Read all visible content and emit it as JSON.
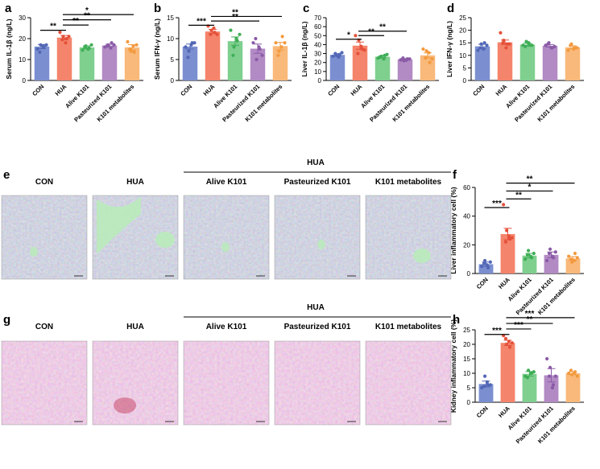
{
  "categories": [
    "CON",
    "HUA",
    "Alive K101",
    "Pasteurized K101",
    "K101 metabolites"
  ],
  "colors": {
    "CON": "#7b8fd0",
    "HUA": "#f4846b",
    "Alive K101": "#7fcf8f",
    "Pasteurized K101": "#b28ac4",
    "K101 metabolites": "#f8b97a",
    "CON_dot": "#5267b6",
    "HUA_dot": "#e5513a",
    "Alive K101_dot": "#3fae57",
    "Pasteurized K101_dot": "#8a5aa6",
    "K101 metabolites_dot": "#f39a3f",
    "liver_tissue": "#8d8fa8",
    "kidney_tissue": "#d69ac4"
  },
  "chart_data": [
    {
      "panel": "a",
      "type": "bar",
      "ylabel": "Serum IL-1β (ng/L)",
      "ylim": [
        0,
        30
      ],
      "ticks": [
        0,
        10,
        20,
        30
      ],
      "values": [
        16.2,
        20.5,
        15.8,
        16.7,
        15.8
      ],
      "errors": [
        1.0,
        1.0,
        0.7,
        0.6,
        1.3
      ],
      "points": [
        [
          15,
          17,
          16,
          13.5,
          16.5,
          17
        ],
        [
          23,
          21,
          20,
          19.5,
          18,
          21
        ],
        [
          14.5,
          16.5,
          15.5,
          16,
          15,
          17
        ],
        [
          16,
          17,
          18,
          16.5,
          15.5,
          17
        ],
        [
          18.5,
          14,
          13.5,
          15,
          16.5,
          17
        ]
      ],
      "sig": [
        {
          "from": 0,
          "to": 1,
          "label": "**",
          "y": 24
        },
        {
          "from": 1,
          "to": 2,
          "label": "**",
          "y": 26.5
        },
        {
          "from": 1,
          "to": 3,
          "label": "**",
          "y": 29
        },
        {
          "from": 1,
          "to": 4,
          "label": "*",
          "y": 31.5
        }
      ]
    },
    {
      "panel": "b",
      "type": "bar",
      "ylabel": "Serum IFN-γ (ng/L)",
      "ylim": [
        0,
        15
      ],
      "ticks": [
        0,
        5,
        10,
        15
      ],
      "values": [
        8.1,
        11.7,
        9.4,
        7.6,
        8.2
      ],
      "errors": [
        0.6,
        0.5,
        1.0,
        1.1,
        0.9
      ],
      "points": [
        [
          8,
          7,
          9,
          5.5,
          8.5,
          9
        ],
        [
          13,
          12,
          11.5,
          11,
          12.5,
          11
        ],
        [
          12,
          8,
          9.5,
          6,
          10,
          11
        ],
        [
          9,
          5,
          7.5,
          10,
          8,
          6
        ],
        [
          9,
          7,
          10.5,
          6,
          8,
          9
        ]
      ],
      "sig": [
        {
          "from": 0,
          "to": 1,
          "label": "***",
          "y": 13.2
        },
        {
          "from": 1,
          "to": 3,
          "label": "**",
          "y": 14.2
        },
        {
          "from": 1,
          "to": 4,
          "label": "**",
          "y": 15.3
        }
      ]
    },
    {
      "panel": "c",
      "type": "bar",
      "ylabel": "Liver IL-1β (ng/L)",
      "ylim": [
        0,
        70
      ],
      "ticks": [
        0,
        10,
        20,
        30,
        40,
        50,
        60,
        70
      ],
      "values": [
        28.5,
        38.8,
        26.5,
        23.5,
        28.0
      ],
      "errors": [
        1.3,
        4.0,
        1.0,
        0.7,
        2.7
      ],
      "points": [
        [
          27,
          28,
          29,
          30,
          26,
          31
        ],
        [
          50,
          45,
          35,
          30,
          38,
          34
        ],
        [
          25,
          27,
          28,
          26,
          24,
          29
        ],
        [
          23,
          22,
          24,
          25,
          22.5,
          24
        ],
        [
          35,
          33,
          20,
          25,
          31,
          24
        ]
      ],
      "sig": [
        {
          "from": 0,
          "to": 1,
          "label": "*",
          "y": 46
        },
        {
          "from": 1,
          "to": 2,
          "label": "**",
          "y": 50
        },
        {
          "from": 1,
          "to": 3,
          "label": "**",
          "y": 55
        }
      ]
    },
    {
      "panel": "d",
      "type": "bar",
      "ylabel": "Liver IFN-γ (ng/L)",
      "ylim": [
        0,
        25
      ],
      "ticks": [
        0,
        5,
        10,
        15,
        20,
        25
      ],
      "values": [
        13.6,
        15.2,
        14.3,
        13.8,
        13.2
      ],
      "errors": [
        0.8,
        0.9,
        0.5,
        0.5,
        0.6
      ],
      "points": [
        [
          12,
          14.5,
          15,
          13,
          12.5,
          14
        ],
        [
          19,
          16,
          14.5,
          15,
          13,
          14.5
        ],
        [
          14,
          15.5,
          14,
          13.5,
          15,
          14
        ],
        [
          14,
          15,
          13,
          14.5,
          13,
          13.5
        ],
        [
          12,
          14.5,
          13,
          14,
          12.5,
          13
        ]
      ],
      "sig": []
    },
    {
      "panel": "f",
      "type": "bar",
      "ylabel": "Liver inflammatory cell (%)",
      "ylim": [
        0,
        60
      ],
      "ticks": [
        0,
        20,
        40,
        60
      ],
      "values": [
        6.5,
        27.5,
        12.5,
        13.0,
        10.5
      ],
      "errors": [
        1.5,
        4.0,
        1.5,
        2.0,
        1.3
      ],
      "points": [
        [
          5,
          9,
          4,
          7,
          6,
          8
        ],
        [
          48,
          30,
          24,
          22,
          26,
          25
        ],
        [
          10,
          16,
          11,
          13,
          12,
          14
        ],
        [
          9,
          17,
          11,
          14,
          12,
          15
        ],
        [
          12,
          8,
          14,
          10,
          9,
          11
        ]
      ],
      "sig": [
        {
          "from": 0,
          "to": 1,
          "label": "***",
          "y": 46
        },
        {
          "from": 1,
          "to": 2,
          "label": "**",
          "y": 52
        },
        {
          "from": 1,
          "to": 3,
          "label": "*",
          "y": 57.5
        },
        {
          "from": 1,
          "to": 4,
          "label": "**",
          "y": 63
        }
      ]
    },
    {
      "panel": "h",
      "type": "bar",
      "ylabel": "Kidney inflammatory cell (%)",
      "ylim": [
        0,
        25
      ],
      "ticks": [
        0,
        5,
        10,
        15,
        20,
        25
      ],
      "values": [
        6.3,
        20.5,
        9.8,
        9.3,
        10.0
      ],
      "errors": [
        1.0,
        0.9,
        0.8,
        2.3,
        0.5
      ],
      "points": [
        [
          5,
          9,
          6,
          5.5,
          7,
          6
        ],
        [
          23,
          20,
          19,
          22,
          21,
          20.5
        ],
        [
          9,
          11,
          10,
          8.5,
          10,
          10.5
        ],
        [
          15,
          12,
          6,
          9,
          5,
          9
        ],
        [
          10,
          9.5,
          10.5,
          11,
          10,
          9
        ]
      ],
      "sig": [
        {
          "from": 0,
          "to": 1,
          "label": "***",
          "y": 23.4
        },
        {
          "from": 1,
          "to": 2,
          "label": "***",
          "y": 25.3
        },
        {
          "from": 1,
          "to": 3,
          "label": "**",
          "y": 27.2
        },
        {
          "from": 1,
          "to": 4,
          "label": "***",
          "y": 29.2
        }
      ]
    }
  ],
  "micrographs": {
    "e": {
      "group_label": "HUA",
      "titles": [
        "CON",
        "HUA",
        "Alive K101",
        "Pasteurized K101",
        "K101 metabolites"
      ],
      "tissue": "liver"
    },
    "g": {
      "group_label": "HUA",
      "titles": [
        "CON",
        "HUA",
        "Alive K101",
        "Pasteurized K101",
        "K101 metabolites"
      ],
      "tissue": "kidney"
    }
  },
  "panel_labels": [
    "a",
    "b",
    "c",
    "d",
    "e",
    "f",
    "g",
    "h"
  ]
}
